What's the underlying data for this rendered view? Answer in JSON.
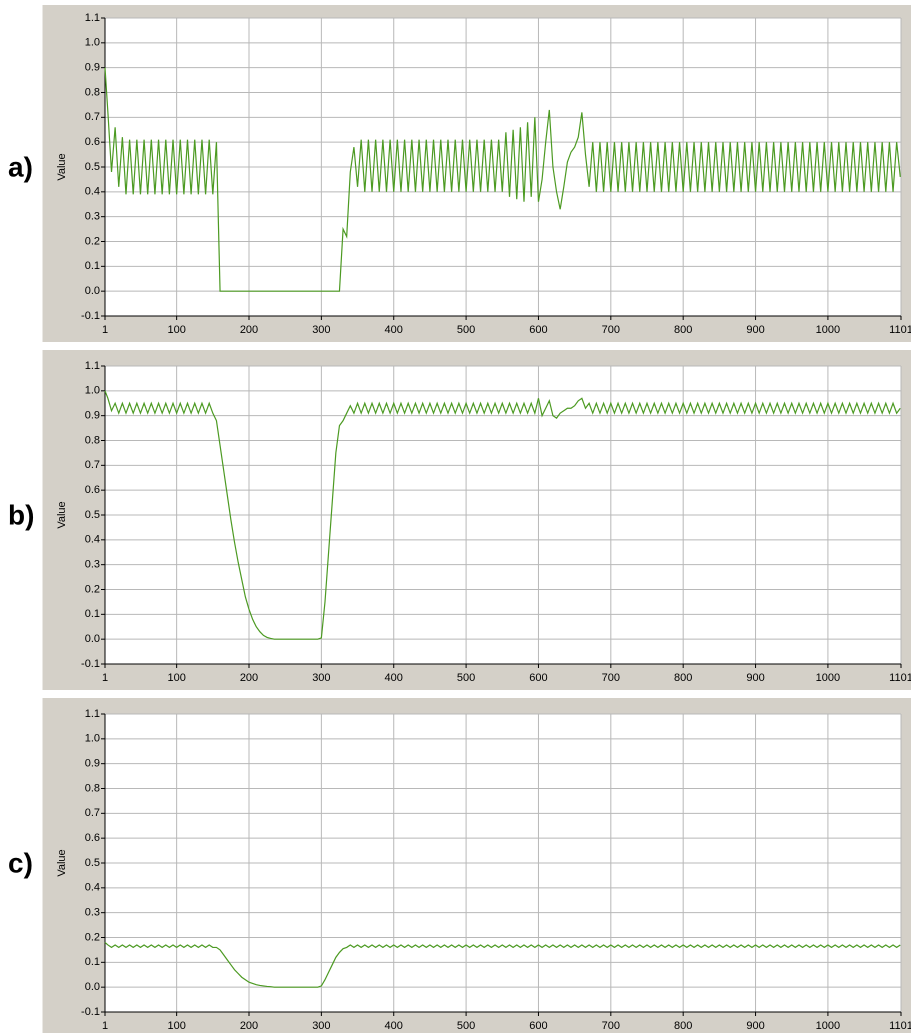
{
  "chart_data": [
    {
      "type": "line",
      "label": "a)",
      "ylabel": "Value",
      "color": "#4c9a22",
      "grid": true,
      "xlim": [
        1,
        1101
      ],
      "xticks": [
        1,
        100,
        200,
        300,
        400,
        500,
        600,
        700,
        800,
        900,
        1000,
        1101
      ],
      "ylim": [
        -0.1,
        1.1
      ],
      "yticks": [
        1.1,
        {
          "value": 1,
          "label": "1.0"
        },
        0.9,
        0.8,
        0.7,
        0.6,
        0.5,
        0.4,
        0.3,
        0.2,
        0.1,
        {
          "value": 0,
          "label": "0.0"
        },
        -0.1
      ],
      "x": [
        1,
        5,
        10,
        15,
        20,
        25,
        30,
        35,
        40,
        45,
        50,
        55,
        60,
        65,
        70,
        75,
        80,
        85,
        90,
        95,
        100,
        105,
        110,
        115,
        120,
        125,
        130,
        135,
        140,
        145,
        150,
        155,
        160,
        165,
        170,
        175,
        180,
        185,
        190,
        195,
        200,
        205,
        210,
        215,
        220,
        225,
        230,
        235,
        240,
        245,
        250,
        255,
        260,
        265,
        270,
        275,
        280,
        285,
        290,
        295,
        300,
        305,
        310,
        315,
        320,
        325,
        330,
        335,
        340,
        345,
        350,
        355,
        360,
        365,
        370,
        375,
        380,
        385,
        390,
        395,
        400,
        405,
        410,
        415,
        420,
        425,
        430,
        435,
        440,
        445,
        450,
        455,
        460,
        465,
        470,
        475,
        480,
        485,
        490,
        495,
        500,
        505,
        510,
        515,
        520,
        525,
        530,
        535,
        540,
        545,
        550,
        555,
        560,
        565,
        570,
        575,
        580,
        585,
        590,
        595,
        600,
        605,
        610,
        615,
        620,
        625,
        630,
        635,
        640,
        645,
        650,
        655,
        660,
        665,
        670,
        675,
        680,
        685,
        690,
        695,
        700,
        705,
        710,
        715,
        720,
        725,
        730,
        735,
        740,
        745,
        750,
        755,
        760,
        765,
        770,
        775,
        780,
        785,
        790,
        795,
        800,
        805,
        810,
        815,
        820,
        825,
        830,
        835,
        840,
        845,
        850,
        855,
        860,
        865,
        870,
        875,
        880,
        885,
        890,
        895,
        900,
        905,
        910,
        915,
        920,
        925,
        930,
        935,
        940,
        945,
        950,
        955,
        960,
        965,
        970,
        975,
        980,
        985,
        990,
        995,
        1000,
        1005,
        1010,
        1015,
        1020,
        1025,
        1030,
        1035,
        1040,
        1045,
        1050,
        1055,
        1060,
        1065,
        1070,
        1075,
        1080,
        1085,
        1090,
        1095,
        1100
      ],
      "values": [
        0.9,
        0.72,
        0.48,
        0.66,
        0.42,
        0.62,
        0.39,
        0.61,
        0.39,
        0.61,
        0.39,
        0.61,
        0.39,
        0.61,
        0.39,
        0.61,
        0.39,
        0.61,
        0.39,
        0.61,
        0.39,
        0.61,
        0.39,
        0.61,
        0.39,
        0.61,
        0.39,
        0.61,
        0.39,
        0.61,
        0.39,
        0.6,
        0,
        0,
        0,
        0,
        0,
        0,
        0,
        0,
        0,
        0,
        0,
        0,
        0,
        0,
        0,
        0,
        0,
        0,
        0,
        0,
        0,
        0,
        0,
        0,
        0,
        0,
        0,
        0,
        0,
        0,
        0,
        0,
        0,
        0,
        0.25,
        0.22,
        0.48,
        0.58,
        0.42,
        0.61,
        0.4,
        0.61,
        0.4,
        0.61,
        0.4,
        0.61,
        0.4,
        0.61,
        0.4,
        0.61,
        0.4,
        0.61,
        0.4,
        0.61,
        0.4,
        0.61,
        0.4,
        0.61,
        0.4,
        0.61,
        0.4,
        0.61,
        0.4,
        0.61,
        0.4,
        0.61,
        0.4,
        0.61,
        0.4,
        0.61,
        0.4,
        0.61,
        0.4,
        0.61,
        0.4,
        0.61,
        0.4,
        0.61,
        0.4,
        0.64,
        0.38,
        0.65,
        0.37,
        0.66,
        0.36,
        0.68,
        0.38,
        0.7,
        0.36,
        0.45,
        0.6,
        0.73,
        0.5,
        0.4,
        0.33,
        0.42,
        0.52,
        0.56,
        0.58,
        0.62,
        0.72,
        0.55,
        0.42,
        0.6,
        0.4,
        0.6,
        0.4,
        0.6,
        0.4,
        0.6,
        0.4,
        0.6,
        0.4,
        0.6,
        0.4,
        0.6,
        0.4,
        0.6,
        0.4,
        0.6,
        0.4,
        0.6,
        0.4,
        0.6,
        0.4,
        0.6,
        0.4,
        0.6,
        0.4,
        0.6,
        0.4,
        0.6,
        0.4,
        0.6,
        0.4,
        0.6,
        0.4,
        0.6,
        0.4,
        0.6,
        0.4,
        0.6,
        0.4,
        0.6,
        0.4,
        0.6,
        0.4,
        0.6,
        0.4,
        0.6,
        0.4,
        0.6,
        0.4,
        0.6,
        0.4,
        0.6,
        0.4,
        0.6,
        0.4,
        0.6,
        0.4,
        0.6,
        0.4,
        0.6,
        0.4,
        0.6,
        0.4,
        0.6,
        0.4,
        0.6,
        0.4,
        0.6,
        0.4,
        0.6,
        0.4,
        0.6,
        0.4,
        0.6,
        0.4,
        0.6,
        0.4,
        0.6,
        0.4,
        0.6,
        0.4,
        0.6,
        0.4,
        0.6,
        0.46
      ]
    },
    {
      "type": "line",
      "label": "b)",
      "ylabel": "Value",
      "color": "#4c9a22",
      "grid": true,
      "xlim": [
        1,
        1101
      ],
      "xticks": [
        1,
        100,
        200,
        300,
        400,
        500,
        600,
        700,
        800,
        900,
        1000,
        1101
      ],
      "ylim": [
        -0.1,
        1.1
      ],
      "yticks": [
        1.1,
        {
          "value": 1,
          "label": "1.0"
        },
        0.9,
        0.8,
        0.7,
        0.6,
        0.5,
        0.4,
        0.3,
        0.2,
        0.1,
        {
          "value": 0,
          "label": "0.0"
        },
        -0.1
      ],
      "x": [
        1,
        5,
        10,
        15,
        20,
        25,
        30,
        35,
        40,
        45,
        50,
        55,
        60,
        65,
        70,
        75,
        80,
        85,
        90,
        95,
        100,
        105,
        110,
        115,
        120,
        125,
        130,
        135,
        140,
        145,
        150,
        155,
        160,
        165,
        170,
        175,
        180,
        185,
        190,
        195,
        200,
        205,
        210,
        215,
        220,
        225,
        230,
        235,
        240,
        245,
        250,
        255,
        260,
        265,
        270,
        275,
        280,
        285,
        290,
        295,
        300,
        305,
        310,
        315,
        320,
        325,
        330,
        335,
        340,
        345,
        350,
        355,
        360,
        365,
        370,
        375,
        380,
        385,
        390,
        395,
        400,
        405,
        410,
        415,
        420,
        425,
        430,
        435,
        440,
        445,
        450,
        455,
        460,
        465,
        470,
        475,
        480,
        485,
        490,
        495,
        500,
        505,
        510,
        515,
        520,
        525,
        530,
        535,
        540,
        545,
        550,
        555,
        560,
        565,
        570,
        575,
        580,
        585,
        590,
        595,
        600,
        605,
        610,
        615,
        620,
        625,
        630,
        635,
        640,
        645,
        650,
        655,
        660,
        665,
        670,
        675,
        680,
        685,
        690,
        695,
        700,
        705,
        710,
        715,
        720,
        725,
        730,
        735,
        740,
        745,
        750,
        755,
        760,
        765,
        770,
        775,
        780,
        785,
        790,
        795,
        800,
        805,
        810,
        815,
        820,
        825,
        830,
        835,
        840,
        845,
        850,
        855,
        860,
        865,
        870,
        875,
        880,
        885,
        890,
        895,
        900,
        905,
        910,
        915,
        920,
        925,
        930,
        935,
        940,
        945,
        950,
        955,
        960,
        965,
        970,
        975,
        980,
        985,
        990,
        995,
        1000,
        1005,
        1010,
        1015,
        1020,
        1025,
        1030,
        1035,
        1040,
        1045,
        1050,
        1055,
        1060,
        1065,
        1070,
        1075,
        1080,
        1085,
        1090,
        1095,
        1100
      ],
      "values": [
        1.0,
        0.97,
        0.92,
        0.95,
        0.91,
        0.95,
        0.91,
        0.95,
        0.91,
        0.95,
        0.91,
        0.95,
        0.91,
        0.95,
        0.91,
        0.95,
        0.91,
        0.95,
        0.91,
        0.95,
        0.91,
        0.95,
        0.91,
        0.95,
        0.91,
        0.95,
        0.91,
        0.95,
        0.91,
        0.95,
        0.91,
        0.88,
        0.78,
        0.68,
        0.58,
        0.48,
        0.39,
        0.31,
        0.24,
        0.17,
        0.12,
        0.08,
        0.05,
        0.03,
        0.015,
        0.007,
        0.003,
        0,
        0,
        0,
        0,
        0,
        0,
        0,
        0,
        0,
        0,
        0,
        0,
        0,
        0.005,
        0.15,
        0.35,
        0.55,
        0.75,
        0.86,
        0.88,
        0.91,
        0.94,
        0.91,
        0.95,
        0.91,
        0.95,
        0.91,
        0.95,
        0.91,
        0.95,
        0.91,
        0.95,
        0.91,
        0.95,
        0.91,
        0.95,
        0.91,
        0.95,
        0.91,
        0.95,
        0.91,
        0.95,
        0.91,
        0.95,
        0.91,
        0.95,
        0.91,
        0.95,
        0.91,
        0.95,
        0.91,
        0.95,
        0.91,
        0.95,
        0.91,
        0.95,
        0.91,
        0.95,
        0.91,
        0.95,
        0.91,
        0.95,
        0.91,
        0.95,
        0.91,
        0.95,
        0.91,
        0.95,
        0.91,
        0.95,
        0.91,
        0.95,
        0.91,
        0.97,
        0.9,
        0.93,
        0.96,
        0.9,
        0.89,
        0.91,
        0.92,
        0.93,
        0.93,
        0.94,
        0.96,
        0.97,
        0.93,
        0.95,
        0.91,
        0.95,
        0.91,
        0.95,
        0.91,
        0.95,
        0.91,
        0.95,
        0.91,
        0.95,
        0.91,
        0.95,
        0.91,
        0.95,
        0.91,
        0.95,
        0.91,
        0.95,
        0.91,
        0.95,
        0.91,
        0.95,
        0.91,
        0.95,
        0.91,
        0.95,
        0.91,
        0.95,
        0.91,
        0.95,
        0.91,
        0.95,
        0.91,
        0.95,
        0.91,
        0.95,
        0.91,
        0.95,
        0.91,
        0.95,
        0.91,
        0.95,
        0.91,
        0.95,
        0.91,
        0.95,
        0.91,
        0.95,
        0.91,
        0.95,
        0.91,
        0.95,
        0.91,
        0.95,
        0.91,
        0.95,
        0.91,
        0.95,
        0.91,
        0.95,
        0.91,
        0.95,
        0.91,
        0.95,
        0.91,
        0.95,
        0.91,
        0.95,
        0.91,
        0.95,
        0.91,
        0.95,
        0.91,
        0.95,
        0.91,
        0.95,
        0.91,
        0.95,
        0.91,
        0.95,
        0.91,
        0.95,
        0.91,
        0.95,
        0.91,
        0.93
      ]
    },
    {
      "type": "line",
      "label": "c)",
      "ylabel": "Value",
      "color": "#4c9a22",
      "grid": true,
      "xlim": [
        1,
        1101
      ],
      "xticks": [
        1,
        100,
        200,
        300,
        400,
        500,
        600,
        700,
        800,
        900,
        1000,
        1101
      ],
      "ylim": [
        -0.1,
        1.1
      ],
      "yticks": [
        1.1,
        {
          "value": 1,
          "label": "1.0"
        },
        0.9,
        0.8,
        0.7,
        0.6,
        0.5,
        0.4,
        0.3,
        0.2,
        0.1,
        {
          "value": 0,
          "label": "0.0"
        },
        -0.1
      ],
      "x": [
        1,
        5,
        10,
        15,
        20,
        25,
        30,
        35,
        40,
        45,
        50,
        55,
        60,
        65,
        70,
        75,
        80,
        85,
        90,
        95,
        100,
        105,
        110,
        115,
        120,
        125,
        130,
        135,
        140,
        145,
        150,
        155,
        160,
        165,
        170,
        175,
        180,
        185,
        190,
        195,
        200,
        205,
        210,
        215,
        220,
        225,
        230,
        235,
        240,
        245,
        250,
        255,
        260,
        265,
        270,
        275,
        280,
        285,
        290,
        295,
        300,
        305,
        310,
        315,
        320,
        325,
        330,
        335,
        340,
        345,
        350,
        355,
        360,
        365,
        370,
        375,
        380,
        385,
        390,
        395,
        400,
        405,
        410,
        415,
        420,
        425,
        430,
        435,
        440,
        445,
        450,
        455,
        460,
        465,
        470,
        475,
        480,
        485,
        490,
        495,
        500,
        505,
        510,
        515,
        520,
        525,
        530,
        535,
        540,
        545,
        550,
        555,
        560,
        565,
        570,
        575,
        580,
        585,
        590,
        595,
        600,
        605,
        610,
        615,
        620,
        625,
        630,
        635,
        640,
        645,
        650,
        655,
        660,
        665,
        670,
        675,
        680,
        685,
        690,
        695,
        700,
        705,
        710,
        715,
        720,
        725,
        730,
        735,
        740,
        745,
        750,
        755,
        760,
        765,
        770,
        775,
        780,
        785,
        790,
        795,
        800,
        805,
        810,
        815,
        820,
        825,
        830,
        835,
        840,
        845,
        850,
        855,
        860,
        865,
        870,
        875,
        880,
        885,
        890,
        895,
        900,
        905,
        910,
        915,
        920,
        925,
        930,
        935,
        940,
        945,
        950,
        955,
        960,
        965,
        970,
        975,
        980,
        985,
        990,
        995,
        1000,
        1005,
        1010,
        1015,
        1020,
        1025,
        1030,
        1035,
        1040,
        1045,
        1050,
        1055,
        1060,
        1065,
        1070,
        1075,
        1080,
        1085,
        1090,
        1095,
        1100
      ],
      "values": [
        0.18,
        0.17,
        0.16,
        0.17,
        0.16,
        0.17,
        0.16,
        0.17,
        0.16,
        0.17,
        0.16,
        0.17,
        0.16,
        0.17,
        0.16,
        0.17,
        0.16,
        0.17,
        0.16,
        0.17,
        0.16,
        0.17,
        0.16,
        0.17,
        0.16,
        0.17,
        0.16,
        0.17,
        0.16,
        0.17,
        0.16,
        0.16,
        0.15,
        0.13,
        0.11,
        0.09,
        0.07,
        0.055,
        0.04,
        0.03,
        0.02,
        0.015,
        0.01,
        0.007,
        0.005,
        0.003,
        0.002,
        0,
        0,
        0,
        0,
        0,
        0,
        0,
        0,
        0,
        0,
        0,
        0,
        0,
        0.005,
        0.03,
        0.06,
        0.09,
        0.12,
        0.14,
        0.155,
        0.16,
        0.17,
        0.16,
        0.17,
        0.16,
        0.17,
        0.16,
        0.17,
        0.16,
        0.17,
        0.16,
        0.17,
        0.16,
        0.17,
        0.16,
        0.17,
        0.16,
        0.17,
        0.16,
        0.17,
        0.16,
        0.17,
        0.16,
        0.17,
        0.16,
        0.17,
        0.16,
        0.17,
        0.16,
        0.17,
        0.16,
        0.17,
        0.16,
        0.17,
        0.16,
        0.17,
        0.16,
        0.17,
        0.16,
        0.17,
        0.16,
        0.17,
        0.16,
        0.17,
        0.16,
        0.17,
        0.16,
        0.17,
        0.16,
        0.17,
        0.16,
        0.17,
        0.16,
        0.17,
        0.16,
        0.17,
        0.16,
        0.17,
        0.16,
        0.17,
        0.16,
        0.17,
        0.16,
        0.17,
        0.16,
        0.17,
        0.16,
        0.17,
        0.16,
        0.17,
        0.16,
        0.17,
        0.16,
        0.17,
        0.16,
        0.17,
        0.16,
        0.17,
        0.16,
        0.17,
        0.16,
        0.17,
        0.16,
        0.17,
        0.16,
        0.17,
        0.16,
        0.17,
        0.16,
        0.17,
        0.16,
        0.17,
        0.16,
        0.17,
        0.16,
        0.17,
        0.16,
        0.17,
        0.16,
        0.17,
        0.16,
        0.17,
        0.16,
        0.17,
        0.16,
        0.17,
        0.16,
        0.17,
        0.16,
        0.17,
        0.16,
        0.17,
        0.16,
        0.17,
        0.16,
        0.17,
        0.16,
        0.17,
        0.16,
        0.17,
        0.16,
        0.17,
        0.16,
        0.17,
        0.16,
        0.17,
        0.16,
        0.17,
        0.16,
        0.17,
        0.16,
        0.17,
        0.16,
        0.17,
        0.16,
        0.17,
        0.16,
        0.17,
        0.16,
        0.17,
        0.16,
        0.17,
        0.16,
        0.17,
        0.16,
        0.17,
        0.16,
        0.17,
        0.16,
        0.17,
        0.16,
        0.17,
        0.16,
        0.17
      ]
    }
  ]
}
